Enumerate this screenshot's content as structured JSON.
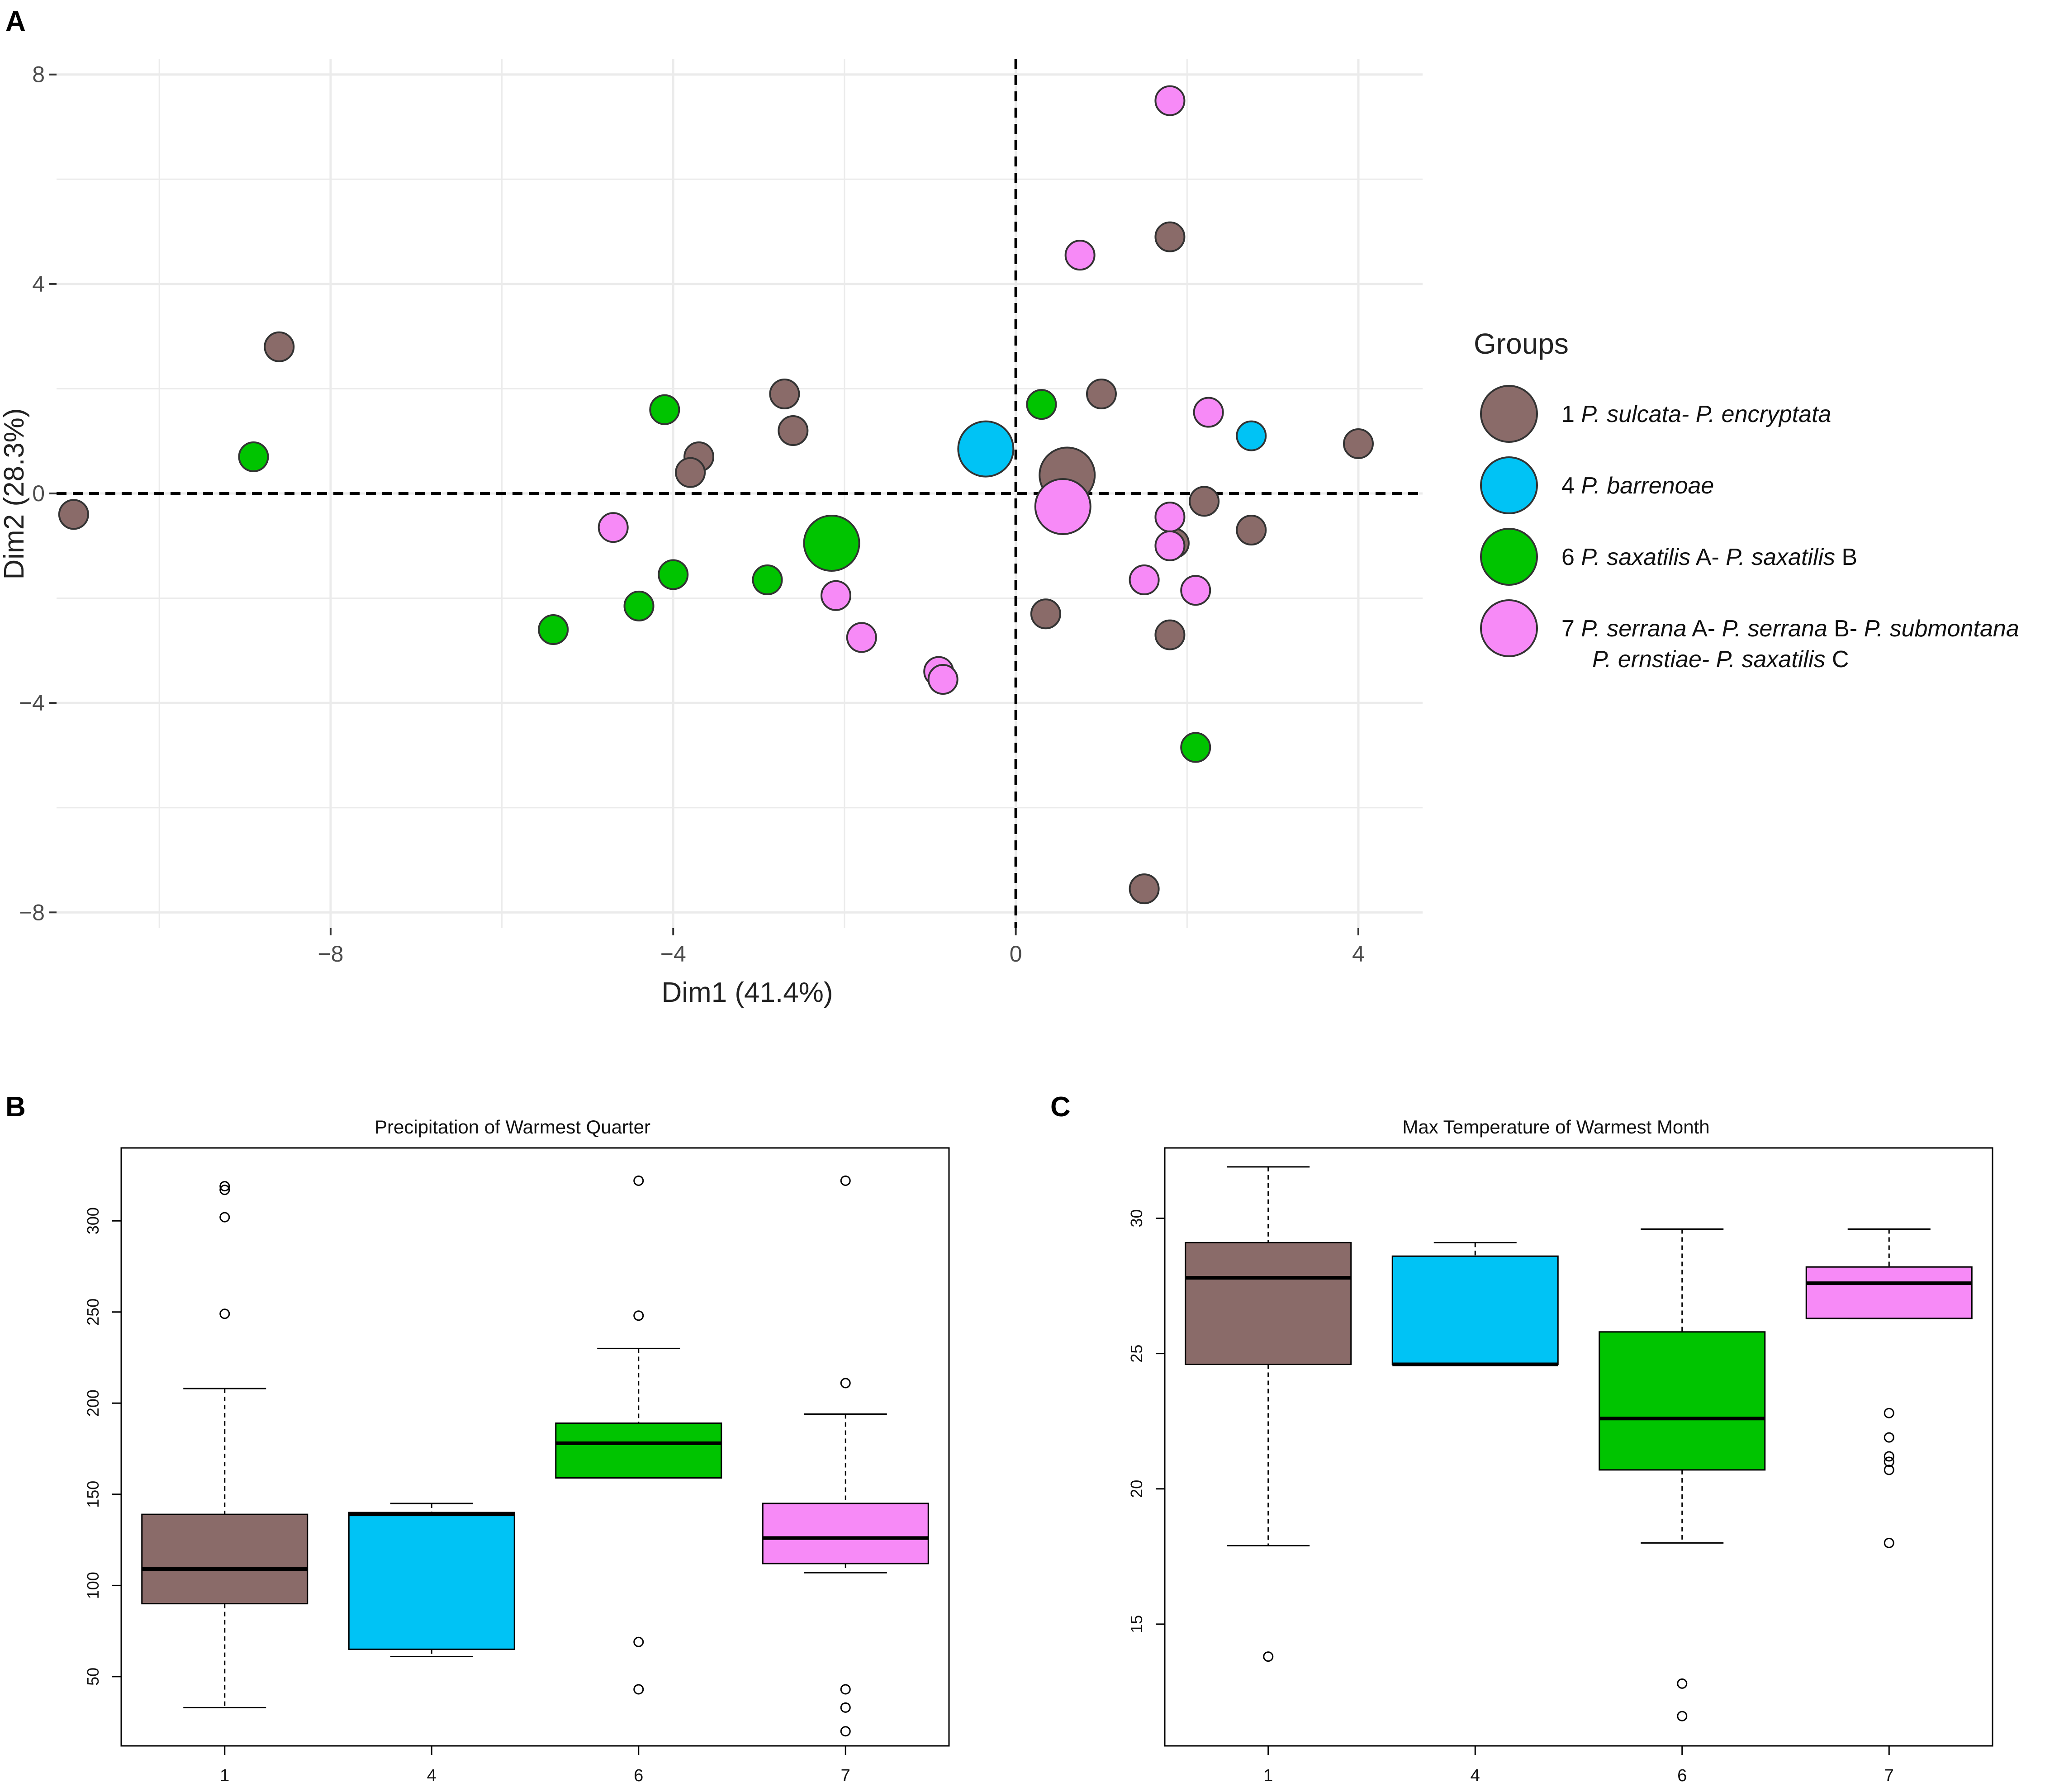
{
  "panel_labels": {
    "a": "A",
    "b": "B",
    "c": "C"
  },
  "colors": {
    "group1": "#8a6b69",
    "group4": "#00c3f5",
    "group6": "#00c400",
    "group7": "#f78af7",
    "grid": "#ebebeb",
    "point_stroke": "#333333"
  },
  "pca": {
    "xlabel": "Dim1 (41.4%)",
    "ylabel": "Dim2 (28.3%)",
    "x_ticks": [
      {
        "value": -8,
        "label": "−8"
      },
      {
        "value": -4,
        "label": "−4"
      },
      {
        "value": 0,
        "label": "0"
      },
      {
        "value": 4,
        "label": "4"
      }
    ],
    "y_ticks": [
      {
        "value": 8,
        "label": "8"
      },
      {
        "value": 4,
        "label": "4"
      },
      {
        "value": 0,
        "label": "0"
      },
      {
        "value": -4,
        "label": "−4"
      },
      {
        "value": -8,
        "label": "−8"
      }
    ],
    "legend": {
      "title": "Groups",
      "entries": [
        {
          "group": "1",
          "color": "group1",
          "lines": [
            [
              {
                "t": "1  ",
                "i": false
              },
              {
                "t": "P. sulcata- P. encryptata",
                "i": true
              }
            ]
          ]
        },
        {
          "group": "4",
          "color": "group4",
          "lines": [
            [
              {
                "t": "4  ",
                "i": false
              },
              {
                "t": "P. barrenoae",
                "i": true
              }
            ]
          ]
        },
        {
          "group": "6",
          "color": "group6",
          "lines": [
            [
              {
                "t": "6  ",
                "i": false
              },
              {
                "t": "P. saxatilis",
                "i": true
              },
              {
                "t": " A- ",
                "i": false
              },
              {
                "t": "P. saxatilis",
                "i": true
              },
              {
                "t": " B",
                "i": false
              }
            ]
          ]
        },
        {
          "group": "7",
          "color": "group7",
          "lines": [
            [
              {
                "t": "7  ",
                "i": false
              },
              {
                "t": "P. serrana",
                "i": true
              },
              {
                "t": " A- ",
                "i": false
              },
              {
                "t": "P. serrana",
                "i": true
              },
              {
                "t": " B- ",
                "i": false
              },
              {
                "t": "P. submontana",
                "i": true
              }
            ],
            [
              {
                "t": "P. ernstiae- P. saxatilis",
                "i": true
              },
              {
                "t": " C",
                "i": false
              }
            ]
          ]
        }
      ]
    }
  },
  "chart_data": [
    {
      "type": "scatter",
      "title": "",
      "xlabel": "Dim1 (41.4%)",
      "ylabel": "Dim2 (28.3%)",
      "xlim": [
        -11.2,
        4.75
      ],
      "ylim": [
        -8.3,
        8.3
      ],
      "reference_lines": {
        "x": 0,
        "y": 0
      },
      "series": [
        {
          "name": "1",
          "color": "group1",
          "points": [
            [
              -11.0,
              -0.4
            ],
            [
              -8.6,
              2.8
            ],
            [
              -3.7,
              0.7
            ],
            [
              -3.8,
              0.4
            ],
            [
              -2.7,
              1.9
            ],
            [
              -2.6,
              1.2
            ],
            [
              1.0,
              1.9
            ],
            [
              1.8,
              4.9
            ],
            [
              2.2,
              -0.15
            ],
            [
              1.85,
              -0.95
            ],
            [
              2.75,
              -0.7
            ],
            [
              4.0,
              0.95
            ],
            [
              0.35,
              -2.3
            ],
            [
              1.8,
              -2.7
            ],
            [
              1.5,
              -7.55
            ]
          ]
        },
        {
          "name": "4",
          "color": "group4",
          "points": [
            [
              2.75,
              1.1
            ]
          ]
        },
        {
          "name": "6",
          "color": "group6",
          "points": [
            [
              -8.9,
              0.7
            ],
            [
              -4.1,
              1.6
            ],
            [
              -4.0,
              -1.55
            ],
            [
              -4.4,
              -2.15
            ],
            [
              -5.4,
              -2.6
            ],
            [
              -2.9,
              -1.65
            ],
            [
              0.3,
              1.7
            ],
            [
              2.1,
              -4.85
            ]
          ]
        },
        {
          "name": "7",
          "color": "group7",
          "points": [
            [
              1.8,
              7.5
            ],
            [
              0.75,
              4.55
            ],
            [
              2.25,
              1.55
            ],
            [
              1.8,
              -0.45
            ],
            [
              1.8,
              -1.0
            ],
            [
              1.5,
              -1.65
            ],
            [
              2.1,
              -1.85
            ],
            [
              -4.7,
              -0.65
            ],
            [
              -2.1,
              -1.95
            ],
            [
              -1.8,
              -2.75
            ],
            [
              -0.9,
              -3.4
            ],
            [
              -0.85,
              -3.55
            ]
          ]
        }
      ],
      "centroids": [
        {
          "group": "1",
          "x": 0.6,
          "y": 0.35,
          "color": "group1"
        },
        {
          "group": "4",
          "x": -0.35,
          "y": 0.85,
          "color": "group4"
        },
        {
          "group": "6",
          "x": -2.15,
          "y": -0.95,
          "color": "group6"
        },
        {
          "group": "7",
          "x": 0.55,
          "y": -0.25,
          "color": "group7"
        }
      ]
    },
    {
      "type": "box",
      "title": "Precipitation of Warmest Quarter",
      "xlabel": "",
      "ylabel": "",
      "ylim": [
        12,
        340
      ],
      "yticks": [
        50,
        100,
        150,
        200,
        250,
        300
      ],
      "categories": [
        "1",
        "4",
        "6",
        "7"
      ],
      "boxes": [
        {
          "group": "1",
          "color": "group1",
          "lower_whisker": 33,
          "q1": 90,
          "median": 109,
          "q3": 139,
          "upper_whisker": 208,
          "outliers": [
            249,
            302,
            317,
            319
          ]
        },
        {
          "group": "4",
          "color": "group4",
          "lower_whisker": 61,
          "q1": 65,
          "median": 139,
          "q3": 140,
          "upper_whisker": 145,
          "outliers": []
        },
        {
          "group": "6",
          "color": "group6",
          "lower_whisker": 159,
          "q1": 159,
          "median": 178,
          "q3": 189,
          "upper_whisker": 230,
          "outliers": [
            43,
            69,
            248,
            322
          ]
        },
        {
          "group": "7",
          "color": "group7",
          "lower_whisker": 107,
          "q1": 112,
          "median": 126,
          "q3": 145,
          "upper_whisker": 194,
          "outliers": [
            20,
            33,
            43,
            211,
            322
          ]
        }
      ]
    },
    {
      "type": "box",
      "title": "Max Temperature of Warmest Month",
      "xlabel": "",
      "ylabel": "",
      "ylim": [
        10.5,
        32.6
      ],
      "yticks": [
        15,
        20,
        25,
        30
      ],
      "categories": [
        "1",
        "4",
        "6",
        "7"
      ],
      "boxes": [
        {
          "group": "1",
          "color": "group1",
          "lower_whisker": 17.9,
          "q1": 24.6,
          "median": 27.8,
          "q3": 29.1,
          "upper_whisker": 31.9,
          "outliers": [
            13.8
          ]
        },
        {
          "group": "4",
          "color": "group4",
          "lower_whisker": 24.6,
          "q1": 24.6,
          "median": 24.6,
          "q3": 28.6,
          "upper_whisker": 29.1,
          "outliers": []
        },
        {
          "group": "6",
          "color": "group6",
          "lower_whisker": 18.0,
          "q1": 20.7,
          "median": 22.6,
          "q3": 25.8,
          "upper_whisker": 29.6,
          "outliers": [
            11.6,
            12.8
          ]
        },
        {
          "group": "7",
          "color": "group7",
          "lower_whisker": 26.3,
          "q1": 26.3,
          "median": 27.6,
          "q3": 28.2,
          "upper_whisker": 29.6,
          "outliers": [
            18.0,
            20.7,
            21.0,
            21.2,
            21.9,
            22.8
          ]
        }
      ]
    }
  ]
}
